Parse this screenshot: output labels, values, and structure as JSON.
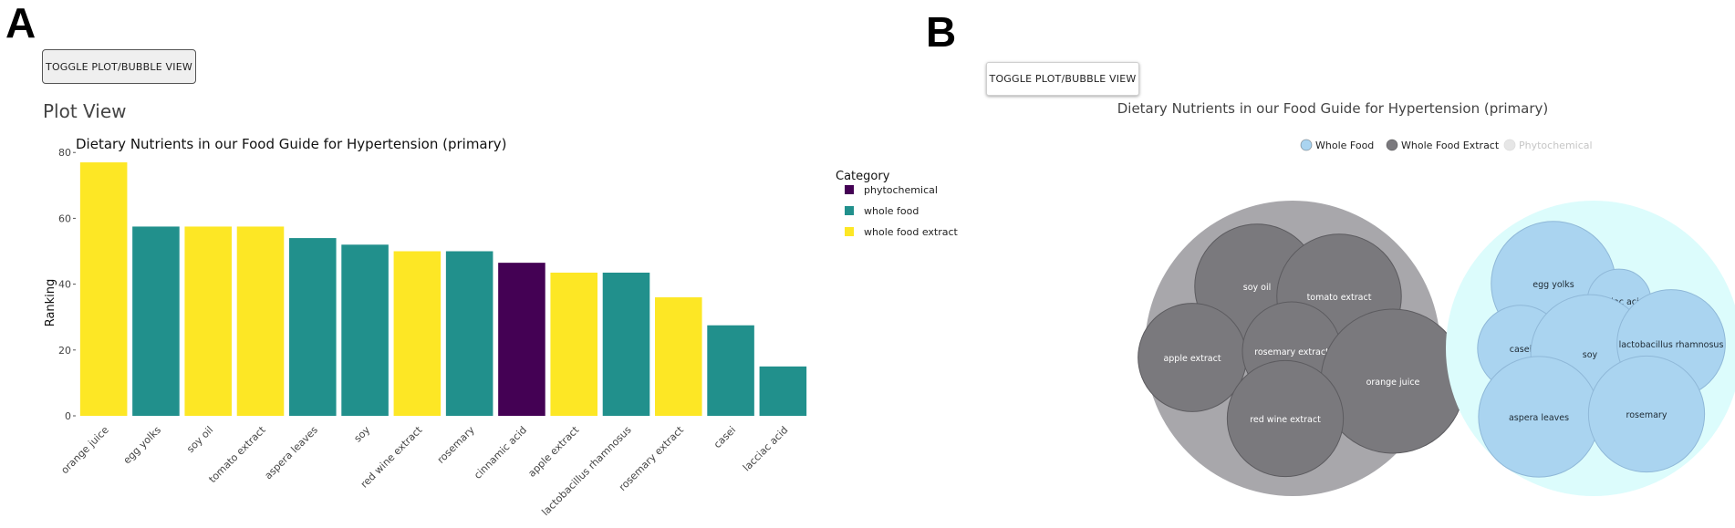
{
  "panels": {
    "a_letter": "A",
    "b_letter": "B"
  },
  "panel_a": {
    "toggle_label": "TOGGLE PLOT/BUBBLE VIEW",
    "view_heading": "Plot View"
  },
  "panel_b": {
    "toggle_label": "TOGGLE PLOT/BUBBLE VIEW"
  },
  "chart_data": [
    {
      "type": "bar",
      "title": "Dietary Nutrients in our Food Guide for Hypertension (primary)",
      "xlabel": "",
      "ylabel": "Ranking",
      "ylim": [
        0,
        82
      ],
      "yticks": [
        0,
        20,
        40,
        60,
        80
      ],
      "legend_title": "Category",
      "legend_position": "right",
      "legend": [
        {
          "name": "phytochemical",
          "color": "#440154"
        },
        {
          "name": "whole food",
          "color": "#21908c"
        },
        {
          "name": "whole food extract",
          "color": "#fde725"
        }
      ],
      "categories": [
        "orange juice",
        "egg yolks",
        "soy oil",
        "tomato extract",
        "aspera leaves",
        "soy",
        "red wine extract",
        "rosemary",
        "cinnamic acid",
        "apple extract",
        "lactobacillus rhamnosus",
        "rosemary extract",
        "casei",
        "lacciac acid"
      ],
      "values": [
        77,
        57.5,
        57.5,
        57.5,
        54,
        52,
        50,
        50,
        46.5,
        43.5,
        43.5,
        36,
        27.5,
        15
      ],
      "bar_category": [
        "whole food extract",
        "whole food",
        "whole food extract",
        "whole food extract",
        "whole food",
        "whole food",
        "whole food extract",
        "whole food",
        "phytochemical",
        "whole food extract",
        "whole food",
        "whole food extract",
        "whole food",
        "whole food"
      ]
    },
    {
      "type": "bubble",
      "title": "Dietary Nutrients in our Food Guide for Hypertension (primary)",
      "legend_position": "top",
      "legend": [
        {
          "name": "Whole Food",
          "color": "#aad4f0",
          "active": true
        },
        {
          "name": "Whole Food Extract",
          "color": "#7a797d",
          "active": true
        },
        {
          "name": "Phytochemical",
          "color": "#e6e6e6",
          "active": false
        }
      ],
      "groups": [
        {
          "name": "Whole Food Extract",
          "fill": "#a8a7ab",
          "items": [
            {
              "label": "soy oil",
              "value": 57.5
            },
            {
              "label": "tomato extract",
              "value": 57.5
            },
            {
              "label": "apple extract",
              "value": 43.5
            },
            {
              "label": "rosemary extract",
              "value": 36
            },
            {
              "label": "orange juice",
              "value": 77
            },
            {
              "label": "red wine extract",
              "value": 50
            }
          ]
        },
        {
          "name": "Whole Food",
          "fill": "#dcfcfc",
          "items": [
            {
              "label": "egg yolks",
              "value": 57.5
            },
            {
              "label": "lacciac acid",
              "value": 15
            },
            {
              "label": "casei",
              "value": 27.5
            },
            {
              "label": "soy",
              "value": 52
            },
            {
              "label": "lactobacillus rhamnosus",
              "value": 43.5
            },
            {
              "label": "aspera leaves",
              "value": 54
            },
            {
              "label": "rosemary",
              "value": 50
            }
          ]
        }
      ]
    }
  ]
}
